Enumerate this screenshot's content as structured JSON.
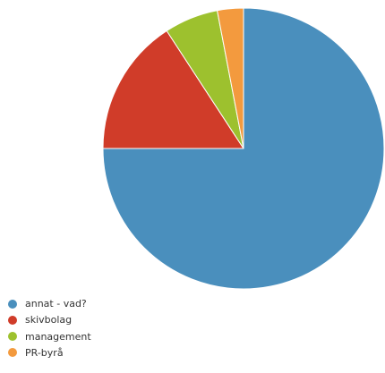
{
  "chart_data": {
    "type": "pie",
    "title": "",
    "legend_position": "bottom-left",
    "series": [
      {
        "name": "annat - vad?",
        "value": 75.0,
        "color": "#4a8fbd"
      },
      {
        "name": "skivbolag",
        "value": 15.8,
        "color": "#d03c29"
      },
      {
        "name": "management",
        "value": 6.2,
        "color": "#9dc12e"
      },
      {
        "name": "PR-byrå",
        "value": 3.0,
        "color": "#f39a3e"
      }
    ]
  }
}
